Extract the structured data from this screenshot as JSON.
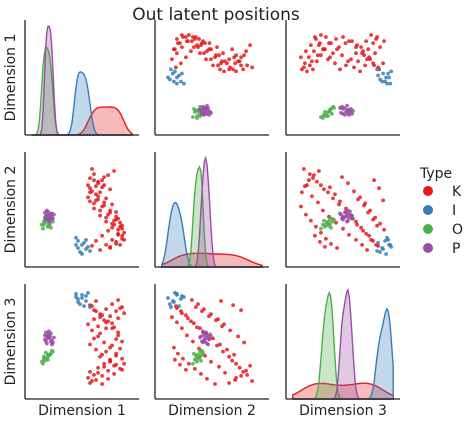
{
  "chart_data": {
    "type": "scatter",
    "subtype": "pairplot",
    "title": "Out latent positions",
    "variables": [
      "Dimension 1",
      "Dimension 2",
      "Dimension 3"
    ],
    "diagonal": "kde",
    "legend": {
      "title": "Type",
      "position": "right",
      "entries": [
        {
          "name": "K",
          "color": "#e41a1c"
        },
        {
          "name": "I",
          "color": "#377eb8"
        },
        {
          "name": "O",
          "color": "#4daf4a"
        },
        {
          "name": "P",
          "color": "#984ea3"
        }
      ]
    },
    "ranges": {
      "Dimension 1": [
        0.0,
        1.0
      ],
      "Dimension 2": [
        -1.0,
        1.0
      ],
      "Dimension 3": [
        -1.0,
        1.0
      ]
    },
    "grid": false,
    "series": [
      {
        "name": "K",
        "points": [
          [
            0.58,
            0.62,
            -0.6
          ],
          [
            0.66,
            0.55,
            -0.52
          ],
          [
            0.72,
            0.48,
            -0.44
          ],
          [
            0.78,
            0.4,
            -0.38
          ],
          [
            0.62,
            0.7,
            -0.66
          ],
          [
            0.68,
            0.34,
            -0.3
          ],
          [
            0.74,
            0.22,
            -0.2
          ],
          [
            0.8,
            0.1,
            -0.08
          ],
          [
            0.84,
            -0.05,
            0.05
          ],
          [
            0.86,
            -0.18,
            0.18
          ],
          [
            0.82,
            -0.3,
            0.28
          ],
          [
            0.76,
            -0.42,
            0.4
          ],
          [
            0.7,
            -0.52,
            0.52
          ],
          [
            0.64,
            -0.62,
            0.6
          ],
          [
            0.6,
            -0.72,
            0.7
          ],
          [
            0.56,
            0.48,
            -0.72
          ],
          [
            0.6,
            0.8,
            -0.78
          ],
          [
            0.66,
            0.26,
            -0.62
          ],
          [
            0.72,
            0.14,
            -0.5
          ],
          [
            0.78,
            -0.02,
            -0.4
          ],
          [
            0.84,
            -0.14,
            -0.28
          ],
          [
            0.88,
            -0.26,
            -0.14
          ],
          [
            0.9,
            -0.38,
            0.0
          ],
          [
            0.86,
            -0.5,
            0.12
          ],
          [
            0.8,
            -0.6,
            0.26
          ],
          [
            0.74,
            -0.7,
            0.38
          ],
          [
            0.68,
            -0.8,
            0.48
          ],
          [
            0.62,
            0.58,
            0.62
          ],
          [
            0.58,
            0.42,
            0.72
          ],
          [
            0.64,
            0.18,
            0.8
          ],
          [
            0.7,
            0.06,
            -0.84
          ],
          [
            0.76,
            -0.1,
            -0.74
          ],
          [
            0.82,
            -0.22,
            -0.64
          ],
          [
            0.88,
            -0.34,
            -0.54
          ],
          [
            0.92,
            -0.46,
            -0.44
          ],
          [
            0.9,
            -0.58,
            -0.34
          ],
          [
            0.84,
            -0.68,
            -0.24
          ],
          [
            0.78,
            -0.76,
            -0.12
          ],
          [
            0.72,
            0.64,
            -0.02
          ],
          [
            0.66,
            0.52,
            0.1
          ],
          [
            0.6,
            0.36,
            0.22
          ],
          [
            0.56,
            0.24,
            0.34
          ],
          [
            0.62,
            0.12,
            0.44
          ],
          [
            0.68,
            -0.02,
            0.54
          ],
          [
            0.74,
            -0.16,
            0.64
          ],
          [
            0.8,
            -0.28,
            0.74
          ],
          [
            0.86,
            -0.4,
            0.82
          ],
          [
            0.9,
            -0.52,
            -0.56
          ],
          [
            0.84,
            -0.64,
            -0.46
          ],
          [
            0.78,
            -0.74,
            -0.36
          ],
          [
            0.7,
            0.44,
            -0.26
          ],
          [
            0.64,
            0.3,
            -0.16
          ],
          [
            0.58,
            0.16,
            -0.06
          ],
          [
            0.62,
            0.02,
            0.06
          ],
          [
            0.68,
            -0.12,
            0.16
          ],
          [
            0.74,
            -0.24,
            0.26
          ],
          [
            0.8,
            -0.36,
            0.36
          ],
          [
            0.86,
            -0.48,
            0.46
          ],
          [
            0.92,
            -0.6,
            0.56
          ],
          [
            0.88,
            -0.7,
            0.66
          ],
          [
            0.82,
            0.76,
            -0.48
          ],
          [
            0.76,
            0.68,
            -0.58
          ],
          [
            0.7,
            0.58,
            -0.68
          ],
          [
            0.64,
            0.46,
            -0.76
          ],
          [
            0.58,
            0.34,
            -0.82
          ],
          [
            0.66,
            0.2,
            0.3
          ],
          [
            0.72,
            0.08,
            0.42
          ],
          [
            0.78,
            -0.06,
            0.5
          ],
          [
            0.84,
            -0.2,
            0.6
          ],
          [
            0.9,
            -0.32,
            0.68
          ]
        ]
      },
      {
        "name": "I",
        "points": [
          [
            0.46,
            -0.62,
            0.84
          ],
          [
            0.5,
            -0.7,
            0.92
          ],
          [
            0.54,
            -0.78,
            0.8
          ],
          [
            0.48,
            -0.84,
            0.74
          ],
          [
            0.44,
            -0.56,
            0.88
          ],
          [
            0.52,
            -0.66,
            0.7
          ],
          [
            0.56,
            -0.74,
            0.96
          ],
          [
            0.5,
            -0.88,
            0.86
          ],
          [
            0.46,
            -0.76,
            0.78
          ],
          [
            0.54,
            -0.6,
            0.9
          ],
          [
            0.58,
            -0.82,
            0.68
          ],
          [
            0.44,
            -0.7,
            0.94
          ]
        ]
      },
      {
        "name": "O",
        "points": [
          [
            0.1,
            -0.3,
            -0.4
          ],
          [
            0.12,
            -0.24,
            -0.3
          ],
          [
            0.14,
            -0.18,
            -0.22
          ],
          [
            0.16,
            -0.34,
            -0.36
          ],
          [
            0.18,
            -0.28,
            -0.26
          ],
          [
            0.2,
            -0.2,
            -0.18
          ],
          [
            0.11,
            -0.38,
            -0.44
          ],
          [
            0.15,
            -0.26,
            -0.32
          ],
          [
            0.19,
            -0.36,
            -0.24
          ],
          [
            0.13,
            -0.22,
            -0.38
          ],
          [
            0.17,
            -0.32,
            -0.28
          ],
          [
            0.21,
            -0.24,
            -0.2
          ],
          [
            0.12,
            -0.3,
            -0.34
          ],
          [
            0.16,
            -0.2,
            -0.26
          ]
        ]
      },
      {
        "name": "P",
        "points": [
          [
            0.14,
            -0.2,
            0.0
          ],
          [
            0.16,
            -0.14,
            0.06
          ],
          [
            0.18,
            -0.08,
            0.12
          ],
          [
            0.2,
            -0.16,
            0.02
          ],
          [
            0.15,
            -0.1,
            -0.04
          ],
          [
            0.17,
            -0.22,
            0.1
          ],
          [
            0.19,
            -0.12,
            0.16
          ],
          [
            0.13,
            -0.06,
            0.04
          ],
          [
            0.21,
            -0.18,
            -0.02
          ],
          [
            0.16,
            -0.04,
            0.14
          ],
          [
            0.18,
            -0.24,
            0.08
          ],
          [
            0.14,
            -0.12,
            0.18
          ],
          [
            0.2,
            -0.08,
            -0.06
          ],
          [
            0.17,
            -0.18,
            0.2
          ],
          [
            0.15,
            -0.02,
            0.1
          ],
          [
            0.19,
            -0.14,
            0.0
          ],
          [
            0.22,
            -0.1,
            0.08
          ],
          [
            0.13,
            -0.16,
            0.12
          ]
        ]
      }
    ]
  }
}
